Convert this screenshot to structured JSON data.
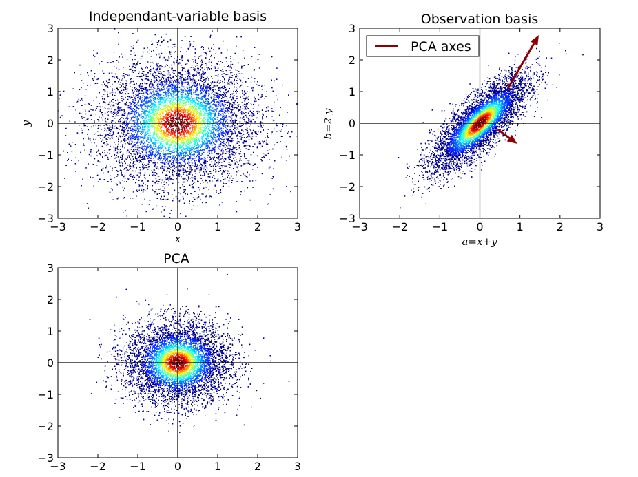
{
  "chart_data": [
    {
      "type": "scatter",
      "title": "Independant-variable basis",
      "xlabel": "x",
      "ylabel": "y",
      "xlim": [
        -3,
        3
      ],
      "ylim": [
        -3,
        3
      ],
      "xticks": [
        -3,
        -2,
        -1,
        0,
        1,
        2,
        3
      ],
      "yticks": [
        -3,
        -2,
        -1,
        0,
        1,
        2,
        3
      ],
      "tick_labels_x": [
        "−3",
        "−2",
        "−1",
        "0",
        "1",
        "2",
        "3"
      ],
      "tick_labels_y": [
        "−3",
        "−2",
        "−1",
        "0",
        "1",
        "2",
        "3"
      ],
      "distribution": {
        "center": [
          0,
          0
        ],
        "std_x": 1.0,
        "std_y": 1.0,
        "correlation": 0.0
      },
      "colormap": "jet (density)",
      "reference_lines": "x=0, y=0"
    },
    {
      "type": "scatter",
      "title": "Observation basis",
      "xlabel": "a=x+y",
      "ylabel": "b=2 y",
      "xlim": [
        -3,
        3
      ],
      "ylim": [
        -3,
        3
      ],
      "xticks": [
        -3,
        -2,
        -1,
        0,
        1,
        2,
        3
      ],
      "yticks": [
        -3,
        -2,
        -1,
        0,
        1,
        2,
        3
      ],
      "tick_labels_x": [
        "−3",
        "−2",
        "−1",
        "0",
        "1",
        "2",
        "3"
      ],
      "tick_labels_y": [
        "−3",
        "−2",
        "−1",
        "0",
        "1",
        "2",
        "3"
      ],
      "distribution": {
        "center": [
          0,
          0
        ],
        "std_x": 0.6,
        "std_y": 0.75,
        "correlation": 0.8
      },
      "colormap": "jet (density)",
      "reference_lines": "x=0, y=0",
      "legend": {
        "entries": [
          "PCA axes"
        ],
        "placement": "top-left",
        "color": "#8b0000"
      },
      "arrows": [
        {
          "from": [
            0.7,
            1.1
          ],
          "to": [
            1.47,
            2.78
          ]
        },
        {
          "from": [
            0.45,
            -0.2
          ],
          "to": [
            0.93,
            -0.65
          ]
        }
      ]
    },
    {
      "type": "scatter",
      "title": "PCA",
      "xlabel": "",
      "ylabel": "",
      "xlim": [
        -3,
        3
      ],
      "ylim": [
        -3,
        3
      ],
      "xticks": [
        -3,
        -2,
        -1,
        0,
        1,
        2,
        3
      ],
      "yticks": [
        -3,
        -2,
        -1,
        0,
        1,
        2,
        3
      ],
      "tick_labels_x": [
        "−3",
        "−2",
        "−1",
        "0",
        "1",
        "2",
        "3"
      ],
      "tick_labels_y": [
        "−3",
        "−2",
        "−1",
        "0",
        "1",
        "2",
        "3"
      ],
      "distribution": {
        "center": [
          0,
          0
        ],
        "std_x": 0.65,
        "std_y": 0.65,
        "correlation": 0.0
      },
      "colormap": "jet (density)",
      "reference_lines": "x=0, y=0"
    }
  ]
}
